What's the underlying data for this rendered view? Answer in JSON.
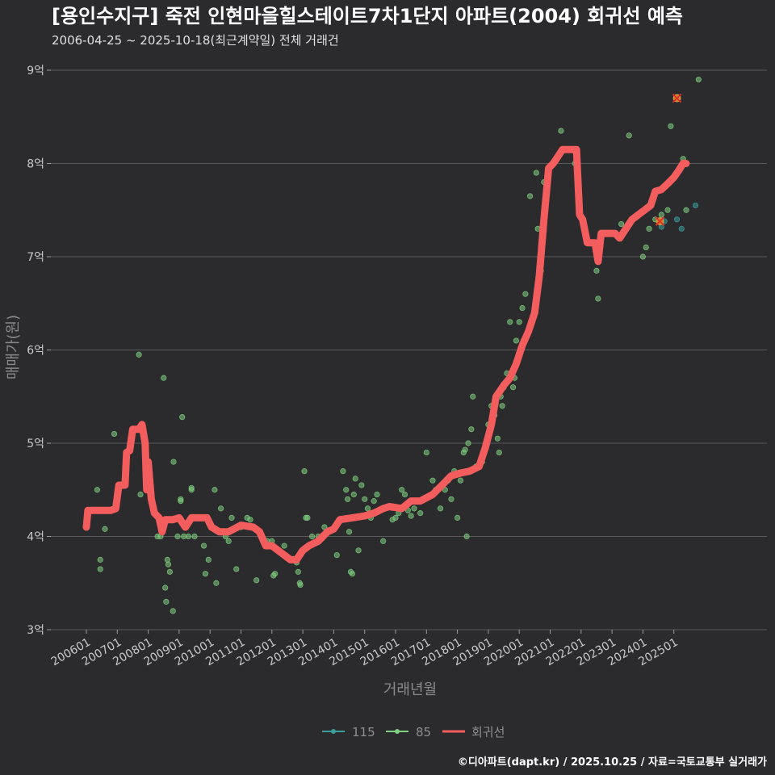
{
  "chart_data": {
    "type": "scatter",
    "title": "[용인수지구] 죽전 인현마을힐스테이트7차1단지 아파트(2004) 회귀선 예측",
    "subtitle": "2006-04-25 ~ 2025-10-18(최근계약일) 전체 거래건",
    "xlabel": "거래년월",
    "ylabel": "매매가(원)",
    "credit": "©디아파트(dapt.kr) / 2025.10.25 / 자료=국토교통부 실거래가",
    "colors": {
      "115": "#3a9e9a",
      "85": "#7fd07f",
      "regression": "#f35d5d",
      "grid": "#5a5a5a"
    },
    "x_range": [
      2006.0,
      2026.0
    ],
    "ylim": [
      3.0,
      9.0
    ],
    "yticks": [
      {
        "value": 3,
        "label": "3억"
      },
      {
        "value": 4,
        "label": "4억"
      },
      {
        "value": 5,
        "label": "5억"
      },
      {
        "value": 6,
        "label": "6억"
      },
      {
        "value": 7,
        "label": "7억"
      },
      {
        "value": 8,
        "label": "8억"
      },
      {
        "value": 9,
        "label": "9억"
      }
    ],
    "xticks": [
      {
        "value": 2006.0,
        "label": "200601"
      },
      {
        "value": 2007.0,
        "label": "200701"
      },
      {
        "value": 2008.0,
        "label": "200801"
      },
      {
        "value": 2009.0,
        "label": "200901"
      },
      {
        "value": 2010.0,
        "label": "201001"
      },
      {
        "value": 2011.0,
        "label": "201101"
      },
      {
        "value": 2012.0,
        "label": "201201"
      },
      {
        "value": 2013.0,
        "label": "201301"
      },
      {
        "value": 2014.0,
        "label": "201401"
      },
      {
        "value": 2015.0,
        "label": "201501"
      },
      {
        "value": 2016.0,
        "label": "201601"
      },
      {
        "value": 2017.0,
        "label": "201701"
      },
      {
        "value": 2018.0,
        "label": "201801"
      },
      {
        "value": 2019.0,
        "label": "201901"
      },
      {
        "value": 2020.0,
        "label": "202001"
      },
      {
        "value": 2021.0,
        "label": "202101"
      },
      {
        "value": 2022.0,
        "label": "202201"
      },
      {
        "value": 2023.0,
        "label": "202301"
      },
      {
        "value": 2024.0,
        "label": "202401"
      },
      {
        "value": 2025.0,
        "label": "202501"
      }
    ],
    "legend": [
      {
        "key": "115",
        "label": "115"
      },
      {
        "key": "85",
        "label": "85"
      },
      {
        "key": "regression",
        "label": "회귀선"
      }
    ],
    "series": [
      {
        "name": "115",
        "points": [
          [
            2024.6,
            7.32
          ],
          [
            2025.1,
            7.4
          ],
          [
            2025.25,
            7.3
          ],
          [
            2025.7,
            7.55
          ],
          [
            2024.7,
            7.38
          ]
        ]
      },
      {
        "name": "85",
        "points": [
          [
            2006.35,
            4.5
          ],
          [
            2006.45,
            3.75
          ],
          [
            2006.45,
            3.65
          ],
          [
            2006.6,
            4.08
          ],
          [
            2006.9,
            5.1
          ],
          [
            2007.15,
            4.55
          ],
          [
            2007.7,
            5.95
          ],
          [
            2007.75,
            4.45
          ],
          [
            2008.3,
            4.0
          ],
          [
            2008.4,
            4.0
          ],
          [
            2008.5,
            5.7
          ],
          [
            2008.55,
            3.45
          ],
          [
            2008.58,
            3.3
          ],
          [
            2008.62,
            3.75
          ],
          [
            2008.65,
            3.7
          ],
          [
            2008.7,
            3.62
          ],
          [
            2008.8,
            3.2
          ],
          [
            2008.82,
            4.8
          ],
          [
            2008.95,
            4.0
          ],
          [
            2009.05,
            4.38
          ],
          [
            2009.05,
            4.4
          ],
          [
            2009.1,
            5.28
          ],
          [
            2009.15,
            4.0
          ],
          [
            2009.3,
            4.0
          ],
          [
            2009.4,
            4.5
          ],
          [
            2009.4,
            4.52
          ],
          [
            2009.5,
            4.0
          ],
          [
            2009.8,
            3.9
          ],
          [
            2009.85,
            3.6
          ],
          [
            2009.95,
            3.75
          ],
          [
            2010.15,
            4.5
          ],
          [
            2010.2,
            3.5
          ],
          [
            2010.35,
            4.3
          ],
          [
            2010.5,
            4.0
          ],
          [
            2010.6,
            3.95
          ],
          [
            2010.7,
            4.2
          ],
          [
            2010.85,
            3.65
          ],
          [
            2011.0,
            4.1
          ],
          [
            2011.2,
            4.2
          ],
          [
            2011.3,
            4.18
          ],
          [
            2011.5,
            3.53
          ],
          [
            2011.85,
            3.95
          ],
          [
            2012.0,
            3.95
          ],
          [
            2012.05,
            3.58
          ],
          [
            2012.1,
            3.6
          ],
          [
            2012.2,
            3.85
          ],
          [
            2012.4,
            3.9
          ],
          [
            2012.7,
            3.75
          ],
          [
            2012.8,
            3.72
          ],
          [
            2012.85,
            3.62
          ],
          [
            2012.9,
            3.5
          ],
          [
            2012.92,
            3.48
          ],
          [
            2013.05,
            4.7
          ],
          [
            2013.1,
            4.2
          ],
          [
            2013.15,
            4.2
          ],
          [
            2013.3,
            4.0
          ],
          [
            2013.5,
            4.0
          ],
          [
            2013.7,
            4.1
          ],
          [
            2014.1,
            3.8
          ],
          [
            2014.3,
            4.7
          ],
          [
            2014.4,
            4.5
          ],
          [
            2014.45,
            4.4
          ],
          [
            2014.5,
            4.05
          ],
          [
            2014.55,
            3.62
          ],
          [
            2014.6,
            3.6
          ],
          [
            2014.65,
            4.45
          ],
          [
            2014.7,
            4.62
          ],
          [
            2014.8,
            3.85
          ],
          [
            2014.9,
            4.55
          ],
          [
            2015.0,
            4.4
          ],
          [
            2015.1,
            4.3
          ],
          [
            2015.2,
            4.2
          ],
          [
            2015.3,
            4.38
          ],
          [
            2015.4,
            4.45
          ],
          [
            2015.6,
            3.95
          ],
          [
            2015.9,
            4.18
          ],
          [
            2016.0,
            4.2
          ],
          [
            2016.1,
            4.25
          ],
          [
            2016.2,
            4.5
          ],
          [
            2016.3,
            4.45
          ],
          [
            2016.4,
            4.28
          ],
          [
            2016.5,
            4.22
          ],
          [
            2016.6,
            4.3
          ],
          [
            2016.8,
            4.25
          ],
          [
            2017.0,
            4.9
          ],
          [
            2017.2,
            4.6
          ],
          [
            2017.3,
            4.5
          ],
          [
            2017.45,
            4.3
          ],
          [
            2017.6,
            4.5
          ],
          [
            2017.7,
            4.6
          ],
          [
            2017.8,
            4.4
          ],
          [
            2017.9,
            4.7
          ],
          [
            2018.0,
            4.2
          ],
          [
            2018.1,
            4.6
          ],
          [
            2018.2,
            4.9
          ],
          [
            2018.25,
            4.93
          ],
          [
            2018.3,
            4.0
          ],
          [
            2018.35,
            5.0
          ],
          [
            2018.45,
            5.15
          ],
          [
            2018.5,
            5.5
          ],
          [
            2018.6,
            4.75
          ],
          [
            2018.8,
            4.8
          ],
          [
            2019.0,
            5.2
          ],
          [
            2019.1,
            5.4
          ],
          [
            2019.2,
            5.3
          ],
          [
            2019.3,
            5.05
          ],
          [
            2019.35,
            4.9
          ],
          [
            2019.4,
            5.5
          ],
          [
            2019.45,
            5.4
          ],
          [
            2019.5,
            5.6
          ],
          [
            2019.6,
            5.75
          ],
          [
            2019.7,
            6.3
          ],
          [
            2019.8,
            5.6
          ],
          [
            2019.85,
            5.7
          ],
          [
            2019.9,
            6.1
          ],
          [
            2020.0,
            6.3
          ],
          [
            2020.1,
            6.45
          ],
          [
            2020.2,
            6.6
          ],
          [
            2020.35,
            7.65
          ],
          [
            2020.55,
            7.9
          ],
          [
            2020.6,
            7.3
          ],
          [
            2020.7,
            6.85
          ],
          [
            2020.8,
            7.8
          ],
          [
            2021.35,
            8.35
          ],
          [
            2021.8,
            8.0
          ],
          [
            2022.5,
            6.85
          ],
          [
            2022.55,
            6.55
          ],
          [
            2023.3,
            7.35
          ],
          [
            2023.55,
            8.3
          ],
          [
            2024.0,
            7.0
          ],
          [
            2024.1,
            7.1
          ],
          [
            2024.4,
            7.4
          ],
          [
            2024.6,
            7.45
          ],
          [
            2024.9,
            8.4
          ],
          [
            2025.3,
            8.05
          ],
          [
            2025.4,
            7.5
          ],
          [
            2025.8,
            8.9
          ],
          [
            2024.8,
            7.5
          ],
          [
            2024.2,
            7.3
          ]
        ]
      }
    ],
    "regression": [
      [
        2006.0,
        4.1
      ],
      [
        2006.05,
        4.28
      ],
      [
        2006.8,
        4.28
      ],
      [
        2006.95,
        4.3
      ],
      [
        2007.05,
        4.55
      ],
      [
        2007.25,
        4.55
      ],
      [
        2007.3,
        4.9
      ],
      [
        2007.4,
        4.92
      ],
      [
        2007.5,
        5.15
      ],
      [
        2007.7,
        5.15
      ],
      [
        2007.8,
        5.2
      ],
      [
        2007.9,
        5.0
      ],
      [
        2007.95,
        4.5
      ],
      [
        2008.0,
        4.8
      ],
      [
        2008.1,
        4.4
      ],
      [
        2008.2,
        4.25
      ],
      [
        2008.35,
        4.2
      ],
      [
        2008.45,
        4.05
      ],
      [
        2008.55,
        4.18
      ],
      [
        2008.8,
        4.18
      ],
      [
        2009.0,
        4.2
      ],
      [
        2009.2,
        4.1
      ],
      [
        2009.4,
        4.2
      ],
      [
        2009.9,
        4.2
      ],
      [
        2010.05,
        4.1
      ],
      [
        2010.3,
        4.05
      ],
      [
        2010.6,
        4.05
      ],
      [
        2011.0,
        4.12
      ],
      [
        2011.4,
        4.1
      ],
      [
        2011.6,
        4.05
      ],
      [
        2011.8,
        3.9
      ],
      [
        2012.0,
        3.9
      ],
      [
        2012.2,
        3.85
      ],
      [
        2012.4,
        3.8
      ],
      [
        2012.6,
        3.75
      ],
      [
        2012.8,
        3.75
      ],
      [
        2013.0,
        3.85
      ],
      [
        2013.2,
        3.9
      ],
      [
        2013.5,
        3.95
      ],
      [
        2013.8,
        4.05
      ],
      [
        2014.0,
        4.08
      ],
      [
        2014.2,
        4.18
      ],
      [
        2014.6,
        4.2
      ],
      [
        2015.0,
        4.22
      ],
      [
        2015.3,
        4.25
      ],
      [
        2015.6,
        4.3
      ],
      [
        2015.8,
        4.32
      ],
      [
        2016.2,
        4.3
      ],
      [
        2016.5,
        4.38
      ],
      [
        2016.8,
        4.38
      ],
      [
        2017.2,
        4.45
      ],
      [
        2017.5,
        4.55
      ],
      [
        2017.8,
        4.65
      ],
      [
        2018.1,
        4.68
      ],
      [
        2018.4,
        4.7
      ],
      [
        2018.7,
        4.75
      ],
      [
        2018.9,
        4.95
      ],
      [
        2019.1,
        5.2
      ],
      [
        2019.25,
        5.5
      ],
      [
        2019.5,
        5.62
      ],
      [
        2019.7,
        5.7
      ],
      [
        2019.9,
        5.85
      ],
      [
        2020.1,
        6.05
      ],
      [
        2020.3,
        6.2
      ],
      [
        2020.5,
        6.4
      ],
      [
        2020.65,
        6.8
      ],
      [
        2020.8,
        7.4
      ],
      [
        2020.95,
        7.95
      ],
      [
        2021.1,
        8.0
      ],
      [
        2021.2,
        8.05
      ],
      [
        2021.4,
        8.15
      ],
      [
        2021.85,
        8.15
      ],
      [
        2021.95,
        7.45
      ],
      [
        2022.05,
        7.4
      ],
      [
        2022.2,
        7.15
      ],
      [
        2022.45,
        7.15
      ],
      [
        2022.55,
        6.95
      ],
      [
        2022.65,
        7.25
      ],
      [
        2023.1,
        7.25
      ],
      [
        2023.25,
        7.2
      ],
      [
        2023.45,
        7.3
      ],
      [
        2023.65,
        7.4
      ],
      [
        2023.85,
        7.45
      ],
      [
        2024.05,
        7.5
      ],
      [
        2024.25,
        7.55
      ],
      [
        2024.4,
        7.7
      ],
      [
        2024.6,
        7.72
      ],
      [
        2024.85,
        7.8
      ],
      [
        2025.0,
        7.85
      ],
      [
        2025.15,
        7.92
      ],
      [
        2025.3,
        8.0
      ],
      [
        2025.4,
        8.0
      ]
    ],
    "outlier_marks": [
      [
        2025.1,
        8.7
      ],
      [
        2024.55,
        7.38
      ]
    ]
  }
}
